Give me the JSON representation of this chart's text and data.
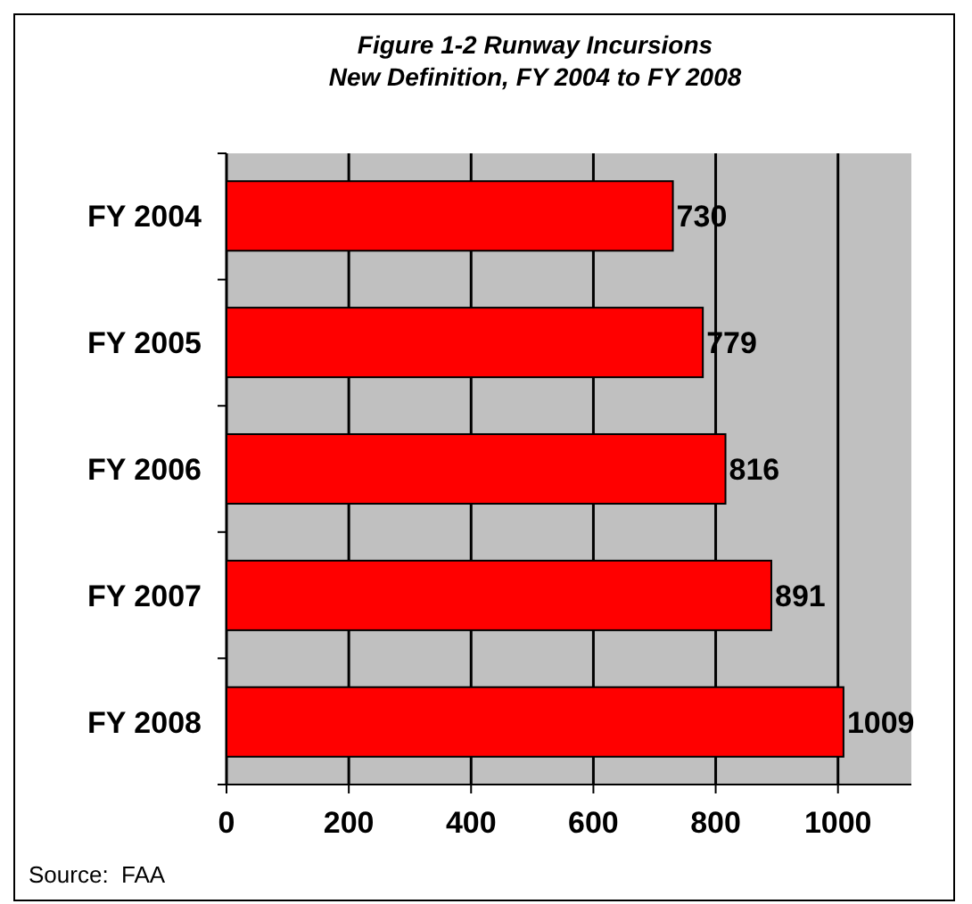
{
  "chart_data": {
    "type": "bar",
    "orientation": "horizontal",
    "title": "Figure 1-2  Runway Incursions",
    "subtitle": "New Definition, FY 2004 to FY 2008",
    "categories": [
      "FY 2004",
      "FY 2005",
      "FY 2006",
      "FY 2007",
      "FY 2008"
    ],
    "values": [
      730,
      779,
      816,
      891,
      1009
    ],
    "color": "#ff0000",
    "xlim": [
      0,
      1120
    ],
    "xticks": [
      0,
      200,
      400,
      600,
      800,
      1000
    ],
    "grid": "x",
    "data_labels": true,
    "annotations": [
      "Source:  FAA"
    ]
  }
}
